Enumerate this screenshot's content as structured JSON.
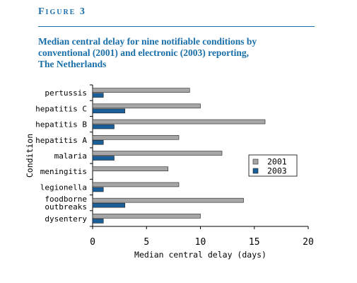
{
  "figure_label": "Figure 3",
  "title_lines": [
    "Median central delay for nine notifiable conditions by",
    "conventional (2001) and electronic (2003) reporting,",
    "The Netherlands"
  ],
  "colors": {
    "accent": "#1a6fa8",
    "series_2001": "#a6a6a6",
    "series_2003": "#1a5f98"
  },
  "chart_data": {
    "type": "bar",
    "orientation": "horizontal",
    "categories": [
      "pertussis",
      "hepatitis C",
      "hepatitis B",
      "hepatitis A",
      "malaria",
      "meningitis",
      "legionella",
      "foodborne outbreaks",
      "dysentery"
    ],
    "category_label_lines": [
      [
        "pertussis"
      ],
      [
        "hepatitis C"
      ],
      [
        "hepatitis B"
      ],
      [
        "hepatitis A"
      ],
      [
        "malaria"
      ],
      [
        "meningitis"
      ],
      [
        "legionella"
      ],
      [
        "foodborne",
        "outbreaks"
      ],
      [
        "dysentery"
      ]
    ],
    "series": [
      {
        "name": "2001",
        "values": [
          9,
          10,
          16,
          8,
          12,
          7,
          8,
          14,
          10
        ]
      },
      {
        "name": "2003",
        "values": [
          1,
          3,
          2,
          1,
          2,
          null,
          1,
          3,
          1
        ]
      }
    ],
    "xlabel": "Median central delay (days)",
    "ylabel": "Condition",
    "xlim": [
      0,
      20
    ],
    "xticks": [
      0,
      5,
      10,
      15,
      20
    ],
    "grid": false,
    "legend_position": "right"
  }
}
